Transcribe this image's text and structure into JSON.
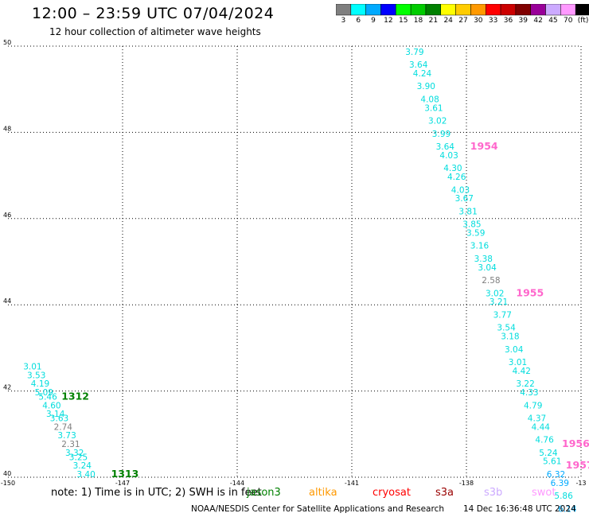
{
  "header": {
    "title": "12:00 – 23:59 UTC 07/04/2024",
    "subtitle": "12 hour collection of altimeter wave heights"
  },
  "colorbar": {
    "colors": [
      "#7f7f7f",
      "#00ffff",
      "#00aaff",
      "#0000ff",
      "#00ff00",
      "#00cc00",
      "#008000",
      "#ffff00",
      "#ffcc00",
      "#ff9900",
      "#ff0000",
      "#cc0000",
      "#800000",
      "#990099",
      "#ccaaff",
      "#ff99ff",
      "#000000"
    ],
    "labels": [
      "3",
      "6",
      "9",
      "12",
      "15",
      "18",
      "21",
      "24",
      "27",
      "30",
      "33",
      "36",
      "39",
      "42",
      "45",
      "70",
      "(ft)"
    ]
  },
  "chart_data": {
    "type": "scatter",
    "x_ticks": [
      "-150",
      "-147",
      "-144",
      "-141",
      "-138",
      "-13"
    ],
    "y_ticks": [
      "50",
      "48",
      "46",
      "44",
      "42",
      "40"
    ],
    "xlim": [
      -150,
      -135
    ],
    "ylim": [
      40,
      50
    ],
    "grid": true,
    "passes": [
      {
        "satellite": "jason-3 (green track label)",
        "labels": [
          {
            "text": "1312",
            "lon": -148.6,
            "lat": 41.8,
            "color": "#008000"
          },
          {
            "text": "1313",
            "lon": -147.3,
            "lat": 40.0,
            "color": "#008000"
          }
        ],
        "points": [
          {
            "lon": -149.6,
            "lat": 42.5,
            "value": "3.01"
          },
          {
            "lon": -149.5,
            "lat": 42.3,
            "value": "3.53"
          },
          {
            "lon": -149.4,
            "lat": 42.1,
            "value": "4.19"
          },
          {
            "lon": -149.3,
            "lat": 41.9,
            "value": "5.09"
          },
          {
            "lon": -149.2,
            "lat": 41.8,
            "value": "5.46"
          },
          {
            "lon": -149.1,
            "lat": 41.6,
            "value": "4.60"
          },
          {
            "lon": -149.0,
            "lat": 41.4,
            "value": "3.14"
          },
          {
            "lon": -148.9,
            "lat": 41.3,
            "value": "3.63"
          },
          {
            "lon": -148.8,
            "lat": 41.1,
            "value": "2.74"
          },
          {
            "lon": -148.7,
            "lat": 40.9,
            "value": "3.73"
          },
          {
            "lon": -148.6,
            "lat": 40.7,
            "value": "2.31"
          },
          {
            "lon": -148.5,
            "lat": 40.5,
            "value": "3.32"
          },
          {
            "lon": -148.4,
            "lat": 40.4,
            "value": "3.25"
          },
          {
            "lon": -148.3,
            "lat": 40.2,
            "value": "3.24"
          },
          {
            "lon": -148.2,
            "lat": 40.0,
            "value": "3.40"
          }
        ]
      },
      {
        "satellite": "swot (pink track label)",
        "labels": [
          {
            "text": "1954",
            "lon": -137.9,
            "lat": 47.6,
            "color": "#ff66cc"
          },
          {
            "text": "1955",
            "lon": -136.7,
            "lat": 44.2,
            "color": "#ff66cc"
          },
          {
            "text": "1956",
            "lon": -135.5,
            "lat": 40.7,
            "color": "#ff66cc"
          },
          {
            "text": "1957",
            "lon": -135.4,
            "lat": 40.2,
            "color": "#ff66cc"
          }
        ],
        "points": [
          {
            "lon": -139.6,
            "lat": 49.8,
            "value": "3.79"
          },
          {
            "lon": -139.5,
            "lat": 49.5,
            "value": "3.64"
          },
          {
            "lon": -139.4,
            "lat": 49.3,
            "value": "4.24"
          },
          {
            "lon": -139.3,
            "lat": 49.0,
            "value": "3.90"
          },
          {
            "lon": -139.2,
            "lat": 48.7,
            "value": "4.08"
          },
          {
            "lon": -139.1,
            "lat": 48.5,
            "value": "3.61"
          },
          {
            "lon": -139.0,
            "lat": 48.2,
            "value": "3.02"
          },
          {
            "lon": -138.9,
            "lat": 47.9,
            "value": "3.99"
          },
          {
            "lon": -138.8,
            "lat": 47.6,
            "value": "3.64"
          },
          {
            "lon": -138.7,
            "lat": 47.4,
            "value": "4.03"
          },
          {
            "lon": -138.6,
            "lat": 47.1,
            "value": "4.30"
          },
          {
            "lon": -138.5,
            "lat": 46.9,
            "value": "4.26"
          },
          {
            "lon": -138.4,
            "lat": 46.6,
            "value": "4.03"
          },
          {
            "lon": -138.3,
            "lat": 46.4,
            "value": "3.67"
          },
          {
            "lon": -138.2,
            "lat": 46.1,
            "value": "3.81"
          },
          {
            "lon": -138.1,
            "lat": 45.8,
            "value": "3.85"
          },
          {
            "lon": -138.0,
            "lat": 45.6,
            "value": "3.59"
          },
          {
            "lon": -137.9,
            "lat": 45.3,
            "value": "3.16"
          },
          {
            "lon": -137.8,
            "lat": 45.0,
            "value": "3.38"
          },
          {
            "lon": -137.7,
            "lat": 44.8,
            "value": "3.04"
          },
          {
            "lon": -137.6,
            "lat": 44.5,
            "value": "2.58"
          },
          {
            "lon": -137.5,
            "lat": 44.2,
            "value": "3.02"
          },
          {
            "lon": -137.4,
            "lat": 44.0,
            "value": "3.21"
          },
          {
            "lon": -137.3,
            "lat": 43.7,
            "value": "3.77"
          },
          {
            "lon": -137.2,
            "lat": 43.4,
            "value": "3.54"
          },
          {
            "lon": -137.1,
            "lat": 43.2,
            "value": "3.18"
          },
          {
            "lon": -137.0,
            "lat": 42.9,
            "value": "3.04"
          },
          {
            "lon": -136.9,
            "lat": 42.6,
            "value": "3.01"
          },
          {
            "lon": -136.8,
            "lat": 42.4,
            "value": "4.42"
          },
          {
            "lon": -136.7,
            "lat": 42.1,
            "value": "3.22"
          },
          {
            "lon": -136.6,
            "lat": 41.9,
            "value": "4.33"
          },
          {
            "lon": -136.5,
            "lat": 41.6,
            "value": "4.79"
          },
          {
            "lon": -136.4,
            "lat": 41.3,
            "value": "4.37"
          },
          {
            "lon": -136.3,
            "lat": 41.1,
            "value": "4.44"
          },
          {
            "lon": -136.2,
            "lat": 40.8,
            "value": "4.76"
          },
          {
            "lon": -136.1,
            "lat": 40.5,
            "value": "5.24"
          },
          {
            "lon": -136.0,
            "lat": 40.3,
            "value": "5.61"
          },
          {
            "lon": -135.9,
            "lat": 40.0,
            "value": "6.32"
          },
          {
            "lon": -135.8,
            "lat": 39.8,
            "value": "6.39"
          },
          {
            "lon": -135.7,
            "lat": 39.5,
            "value": "5.86"
          },
          {
            "lon": -135.6,
            "lat": 39.2,
            "value": "6.14"
          }
        ]
      }
    ]
  },
  "footer": {
    "note": "note: 1) Time is in UTC; 2) SWH is in feet",
    "satellites": [
      {
        "label": "jason3",
        "color": "#008000"
      },
      {
        "label": "altika",
        "color": "#ff9900"
      },
      {
        "label": "cryosat",
        "color": "#ff0000"
      },
      {
        "label": "s3a",
        "color": "#990000"
      },
      {
        "label": "s3b",
        "color": "#ccaaff"
      },
      {
        "label": "swot",
        "color": "#ff99ff"
      }
    ],
    "source": "NOAA/NESDIS Center for Satellite Applications and Research",
    "timestamp": "14 Dec 16:36:48 UTC 2024"
  }
}
